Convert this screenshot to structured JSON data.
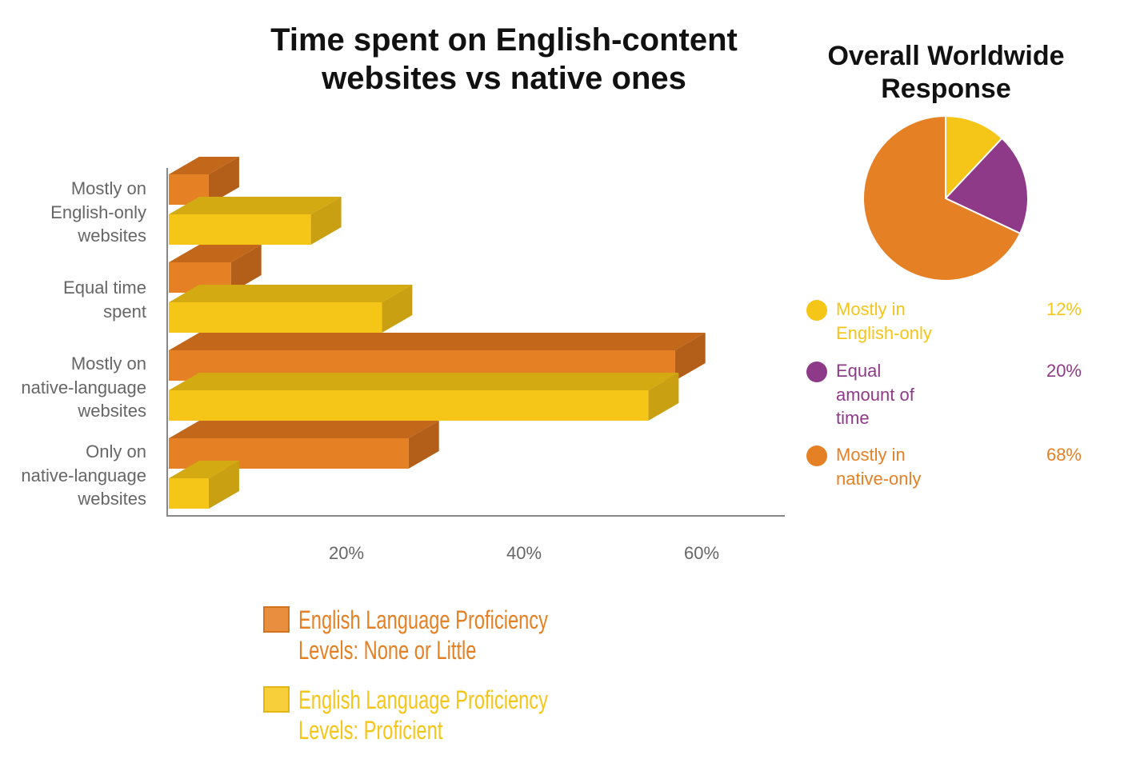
{
  "colors": {
    "orange": "#e58024",
    "orange_top": "#c3671a",
    "orange_side": "#b45f19",
    "yellow": "#f5c518",
    "yellow_top": "#d3aa12",
    "yellow_side": "#c9a012",
    "purple": "#8e3a88",
    "axis": "#888888",
    "text_gray": "#666666"
  },
  "chart_data": [
    {
      "type": "bar",
      "orientation": "horizontal",
      "title": "Time spent on English-content websites vs native ones",
      "categories": [
        "Mostly on English-only websites",
        "Equal time spent",
        "Mostly on native-language websites",
        "Only on native-language websites"
      ],
      "category_lines": [
        [
          "Mostly on",
          "English-only",
          "websites"
        ],
        [
          "Equal time",
          "spent"
        ],
        [
          "Mostly on",
          "native-language",
          "websites"
        ],
        [
          "Only on",
          "native-language",
          "websites"
        ]
      ],
      "series": [
        {
          "name": "English Language Proficiency Levels: None or Little",
          "legend_lines": [
            "English Language Proficiency",
            "Levels: None or Little"
          ],
          "color": "#e58024",
          "values": [
            4.5,
            7,
            57,
            27
          ]
        },
        {
          "name": "English Language Proficiency Levels: Proficient",
          "legend_lines": [
            "English Language Proficiency",
            "Levels: Proficient"
          ],
          "color": "#f5c518",
          "values": [
            16,
            24,
            54,
            4.5
          ]
        }
      ],
      "x_ticks": [
        "20%",
        "40%",
        "60%"
      ],
      "xlim": [
        0,
        70
      ],
      "grid": false,
      "legend_position": "bottom"
    },
    {
      "type": "pie",
      "title": "Overall Worldwide Response",
      "title_lines": [
        "Overall Worldwide",
        "Response"
      ],
      "slices": [
        {
          "label": "Mostly in English-only",
          "label_lines": [
            "Mostly in",
            "English-only"
          ],
          "value": 12,
          "value_label": "12%",
          "color": "#f5c518"
        },
        {
          "label": "Equal amount of time",
          "label_lines": [
            "Equal",
            "amount of",
            "time"
          ],
          "value": 20,
          "value_label": "20%",
          "color": "#8e3a88"
        },
        {
          "label": "Mostly in native-only",
          "label_lines": [
            "Mostly in",
            "native-only"
          ],
          "value": 68,
          "value_label": "68%",
          "color": "#e58024"
        }
      ],
      "legend_position": "bottom"
    }
  ]
}
